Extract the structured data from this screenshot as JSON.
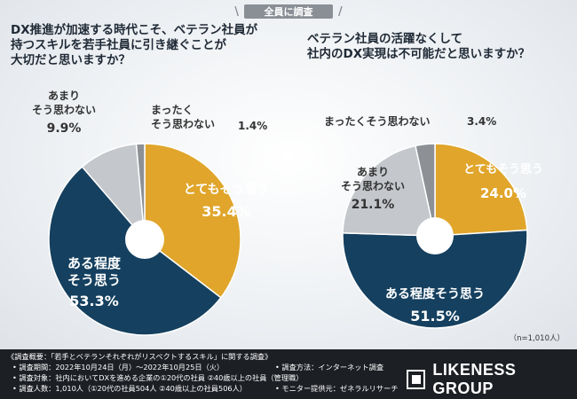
{
  "header": {
    "badge": "全員に調査"
  },
  "questions": {
    "q1": [
      "DX推進が加速する時代こそ、ベテラン社員が",
      "持つスキルを若手社員に引き継ぐことが",
      "大切だと思いますか？"
    ],
    "q2": [
      "ベテラン社員の活躍なくして",
      "社内のDX実現は不可能だと思いますか？"
    ]
  },
  "n_label": "（n=1,010人）",
  "colors": {
    "strongly": "#e0a52a",
    "somewhat": "#15405f",
    "not_much": "#c4c7cb",
    "not_at_all": "#8d9196"
  },
  "chart_data": [
    {
      "type": "pie",
      "categories": [
        "とてもそう思う",
        "ある程度そう思う",
        "あまりそう思わない",
        "まったくそう思わない"
      ],
      "labels": [
        [
          "とてもそう思う"
        ],
        [
          "ある程度",
          "そう思う"
        ],
        [
          "あまり",
          "そう思わない"
        ],
        [
          "まったく",
          "そう思わない"
        ]
      ],
      "values": [
        35.4,
        53.3,
        9.9,
        1.4
      ],
      "value_labels": [
        "35.4%",
        "53.3%",
        "9.9%",
        "1.4%"
      ]
    },
    {
      "type": "pie",
      "categories": [
        "とてもそう思う",
        "ある程度そう思う",
        "あまりそう思わない",
        "まったくそう思わない"
      ],
      "labels": [
        [
          "とてもそう思う"
        ],
        [
          "ある程度そう思う"
        ],
        [
          "あまり",
          "そう思わない"
        ],
        [
          "まったくそう思わない"
        ]
      ],
      "values": [
        24.0,
        51.5,
        21.1,
        3.4
      ],
      "value_labels": [
        "24.0%",
        "51.5%",
        "21.1%",
        "3.4%"
      ]
    }
  ],
  "footer": {
    "title": "《調査概要：「若手とベテランそれぞれがリスペクトするスキル」に関する調査》",
    "col1": [
      "• 調査期間：2022年10月24日（月）〜2022年10月25日（火）",
      "• 調査対象：社内においてDXを進める企業の①20代の社員 ②40歳以上の社員（管理職）",
      "• 調査人数：1,010人（①20代の社員504人 ②40歳以上の社員506人）"
    ],
    "col2": [
      "• 調査方法：インターネット調査",
      "",
      "• モニター提供元：ゼネラルリサーチ"
    ],
    "logo": "LIKENESS GROUP"
  }
}
